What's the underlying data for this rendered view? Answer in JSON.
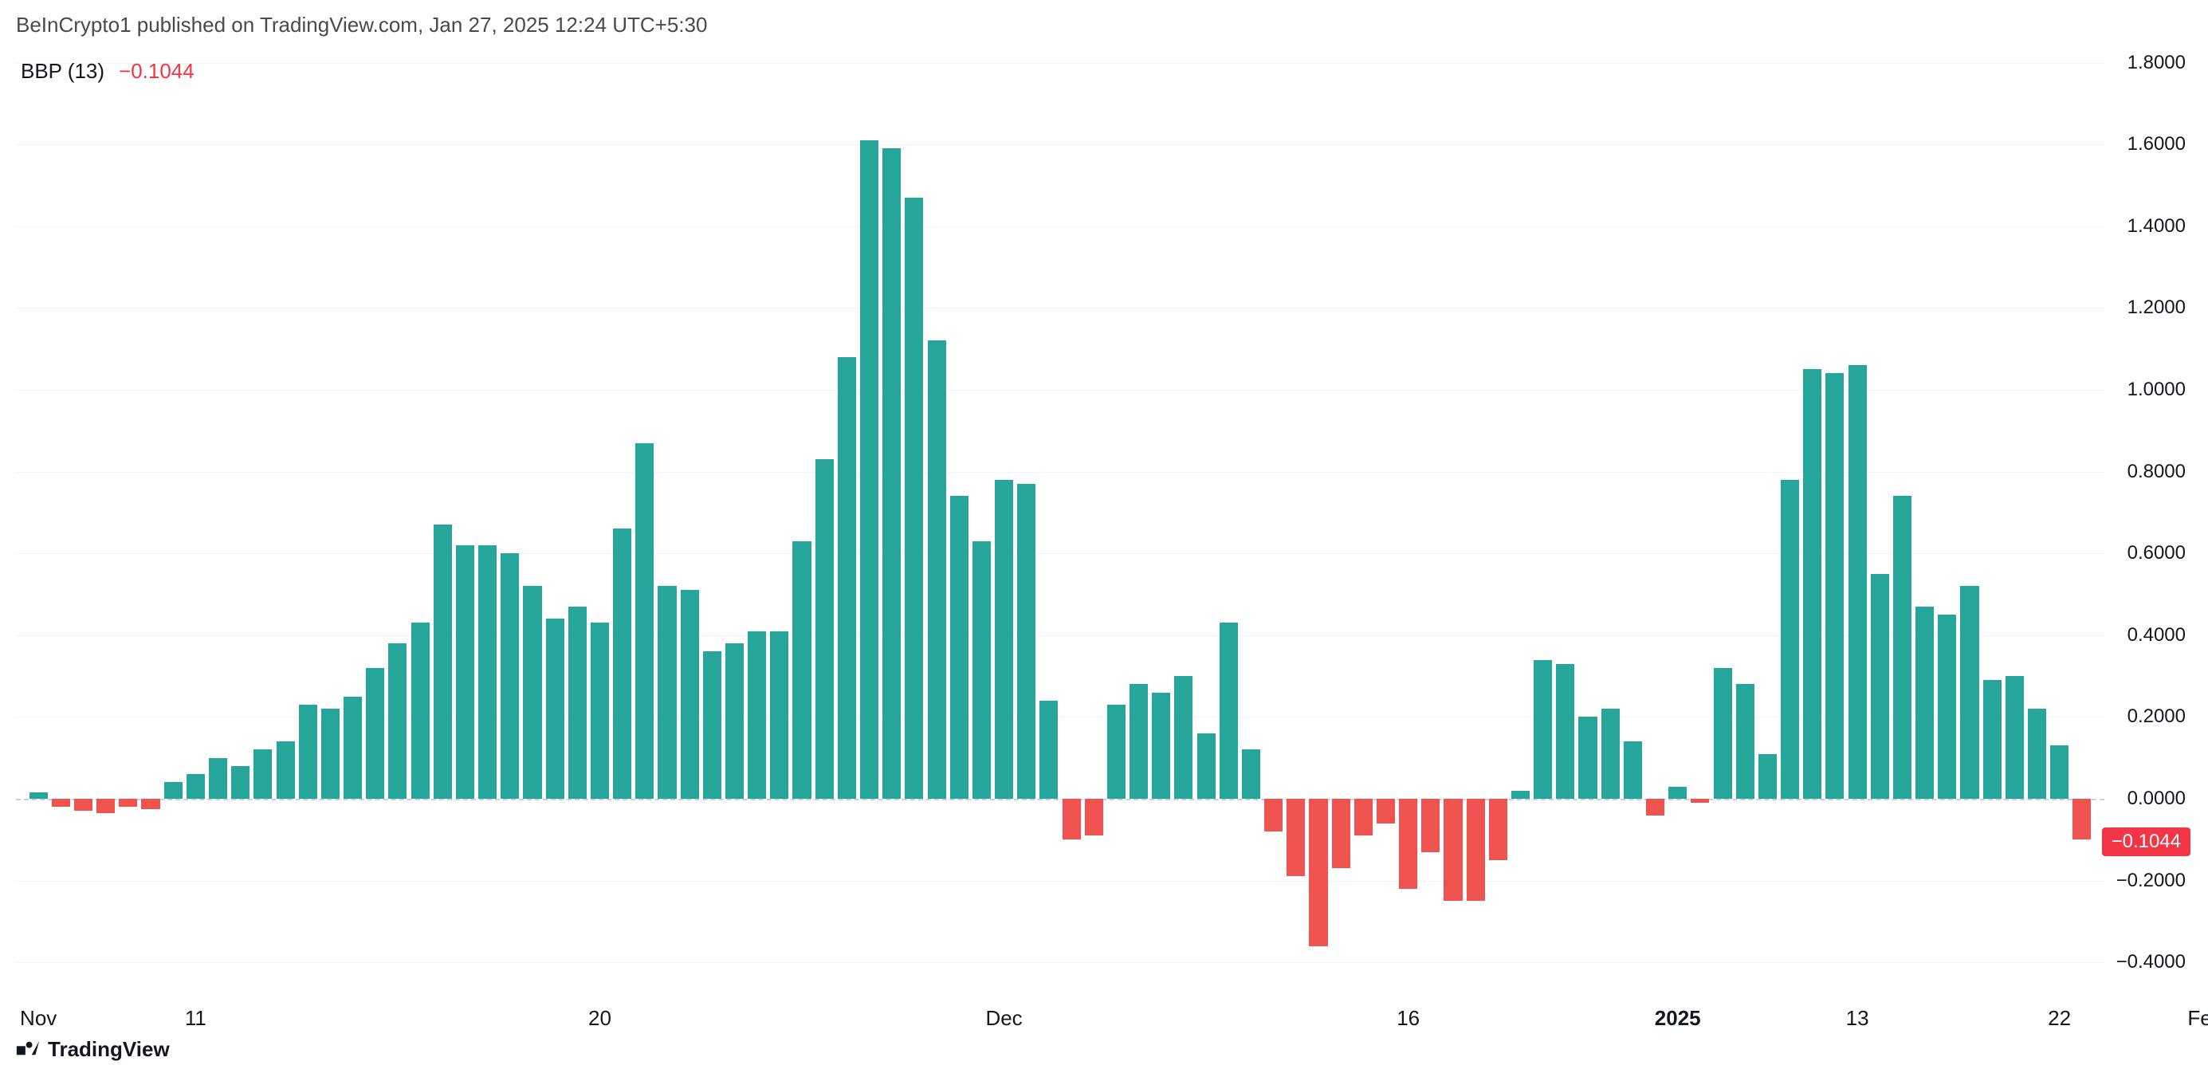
{
  "attribution": "BeInCrypto1 published on TradingView.com, Jan 27, 2025 12:24 UTC+5:30",
  "legend": {
    "name": "BBP (13)",
    "value": "−0.1044",
    "value_color": "#f23645"
  },
  "footer": {
    "brand": "TradingView",
    "logo_color": "#131722"
  },
  "chart": {
    "type": "bar",
    "background_color": "#ffffff",
    "grid_color": "#f0f3fa",
    "zero_line_color": "#b2b5be",
    "positive_color": "#26a69a",
    "negative_color": "#ef5350",
    "ylim": [
      -0.46,
      1.84
    ],
    "ytick_step": 0.2,
    "yticks": [
      {
        "v": 1.8,
        "label": "1.8000"
      },
      {
        "v": 1.6,
        "label": "1.6000"
      },
      {
        "v": 1.4,
        "label": "1.4000"
      },
      {
        "v": 1.2,
        "label": "1.2000"
      },
      {
        "v": 1.0,
        "label": "1.0000"
      },
      {
        "v": 0.8,
        "label": "0.8000"
      },
      {
        "v": 0.6,
        "label": "0.6000"
      },
      {
        "v": 0.4,
        "label": "0.4000"
      },
      {
        "v": 0.2,
        "label": "0.2000"
      },
      {
        "v": 0.0,
        "label": "0.0000"
      },
      {
        "v": -0.2,
        "label": "−0.2000"
      },
      {
        "v": -0.4,
        "label": "−0.4000"
      }
    ],
    "current_badge": {
      "v": -0.1044,
      "label": "−0.1044",
      "bg": "#f23645"
    },
    "xticks": [
      {
        "i": 0,
        "label": "Nov",
        "strong": false
      },
      {
        "i": 7,
        "label": "11",
        "strong": false
      },
      {
        "i": 25,
        "label": "20",
        "strong": false
      },
      {
        "i": 43,
        "label": "Dec",
        "strong": false
      },
      {
        "i": 61,
        "label": "16",
        "strong": false
      },
      {
        "i": 73,
        "label": "2025",
        "strong": true
      },
      {
        "i": 81,
        "label": "13",
        "strong": false
      },
      {
        "i": 90,
        "label": "22",
        "strong": false
      },
      {
        "i": 96.5,
        "label": "Feb",
        "strong": false
      }
    ],
    "bar_width_ratio": 0.82,
    "label_fontsize": 24,
    "values": [
      0.015,
      -0.02,
      -0.03,
      -0.035,
      -0.02,
      -0.025,
      0.04,
      0.06,
      0.1,
      0.08,
      0.12,
      0.14,
      0.23,
      0.22,
      0.25,
      0.32,
      0.38,
      0.43,
      0.67,
      0.62,
      0.62,
      0.6,
      0.52,
      0.44,
      0.47,
      0.43,
      0.66,
      0.87,
      0.52,
      0.51,
      0.36,
      0.38,
      0.41,
      0.41,
      0.63,
      0.83,
      1.08,
      1.61,
      1.59,
      1.47,
      1.12,
      0.74,
      0.63,
      0.78,
      0.77,
      0.24,
      -0.1,
      -0.09,
      0.23,
      0.28,
      0.26,
      0.3,
      0.16,
      0.43,
      0.12,
      -0.08,
      -0.19,
      -0.36,
      -0.17,
      -0.09,
      -0.06,
      -0.22,
      -0.13,
      -0.25,
      -0.25,
      -0.15,
      0.02,
      0.34,
      0.33,
      0.2,
      0.22,
      0.14,
      -0.04,
      0.03,
      -0.01,
      0.32,
      0.28,
      0.11,
      0.78,
      1.05,
      1.04,
      1.06,
      0.55,
      0.74,
      0.47,
      0.45,
      0.52,
      0.29,
      0.3,
      0.22,
      0.13,
      -0.1
    ]
  }
}
